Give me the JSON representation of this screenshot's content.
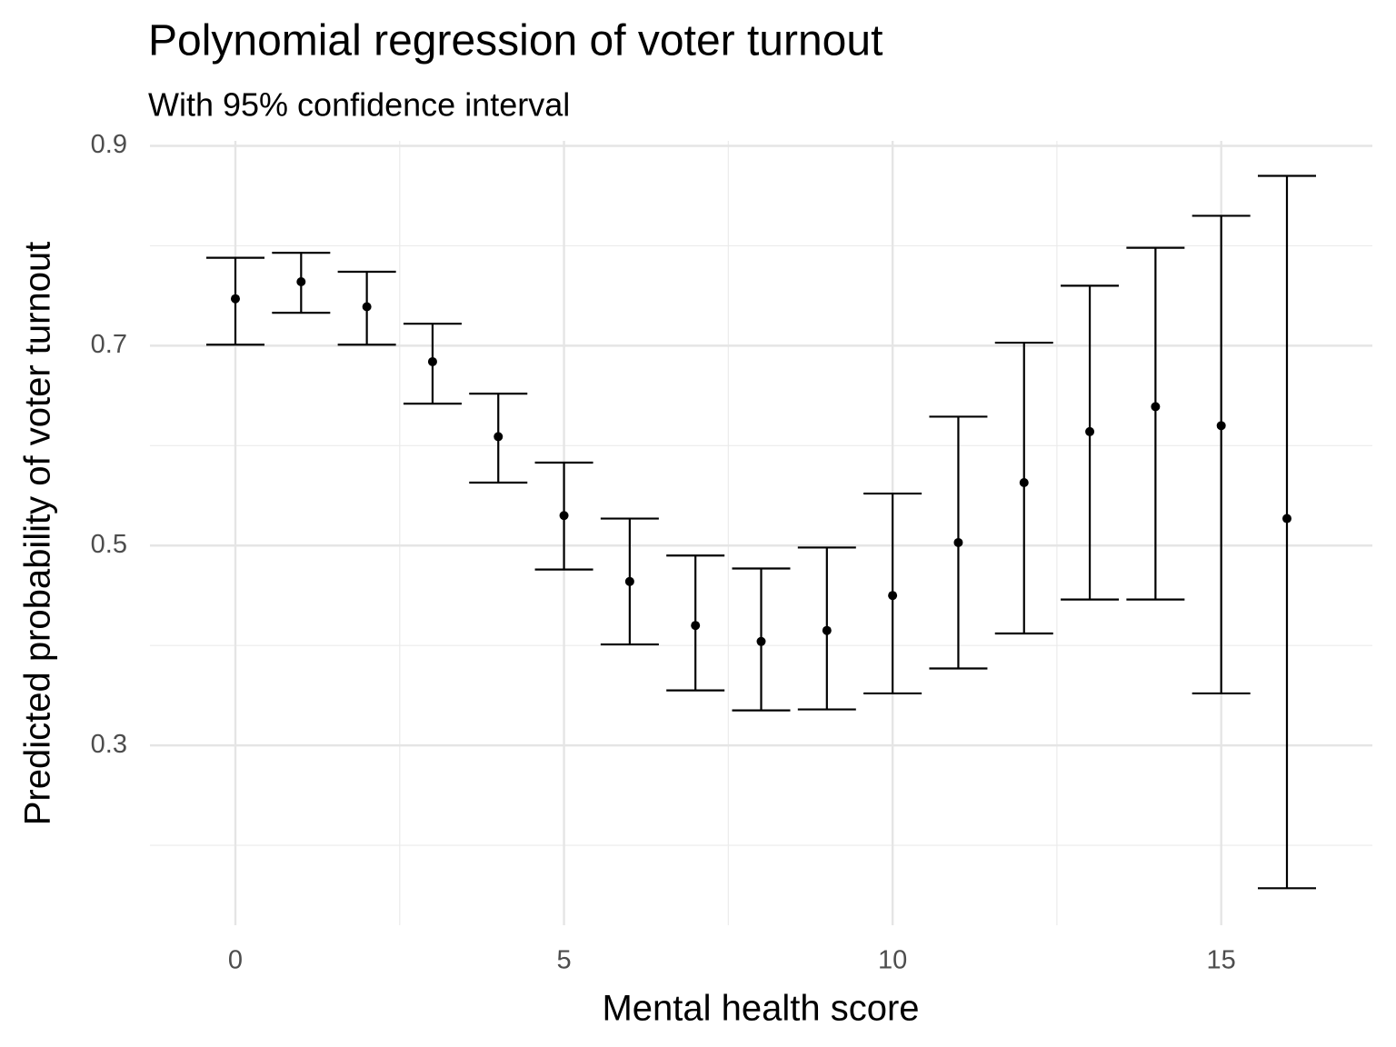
{
  "chart_data": {
    "type": "errorbar",
    "title": "Polynomial regression of voter turnout",
    "subtitle": "With 95% confidence interval",
    "x_label": "Mental health score",
    "y_label": "Predicted probability of voter turnout",
    "x": [
      0,
      1,
      2,
      3,
      4,
      5,
      6,
      7,
      8,
      9,
      10,
      11,
      12,
      13,
      14,
      15,
      16
    ],
    "values": [
      0.747,
      0.764,
      0.739,
      0.684,
      0.609,
      0.53,
      0.464,
      0.42,
      0.404,
      0.415,
      0.45,
      0.503,
      0.563,
      0.614,
      0.639,
      0.62,
      0.527
    ],
    "lower": [
      0.701,
      0.733,
      0.701,
      0.642,
      0.563,
      0.476,
      0.401,
      0.355,
      0.335,
      0.336,
      0.352,
      0.377,
      0.412,
      0.446,
      0.446,
      0.352,
      0.157
    ],
    "upper": [
      0.788,
      0.793,
      0.774,
      0.722,
      0.652,
      0.583,
      0.527,
      0.49,
      0.477,
      0.498,
      0.552,
      0.629,
      0.703,
      0.76,
      0.798,
      0.83,
      0.87
    ],
    "color": "#000000",
    "xlim": [
      -1.3,
      17.3
    ],
    "ylim": [
      0.12,
      0.905
    ],
    "xticks": [
      0,
      5,
      10,
      15
    ],
    "yticks": [
      0.3,
      0.5,
      0.7,
      0.9
    ],
    "x_minor_grid": [
      2.5,
      7.5,
      12.5
    ],
    "y_minor_grid": [
      0.2,
      0.4,
      0.6,
      0.8
    ],
    "grid": true
  }
}
